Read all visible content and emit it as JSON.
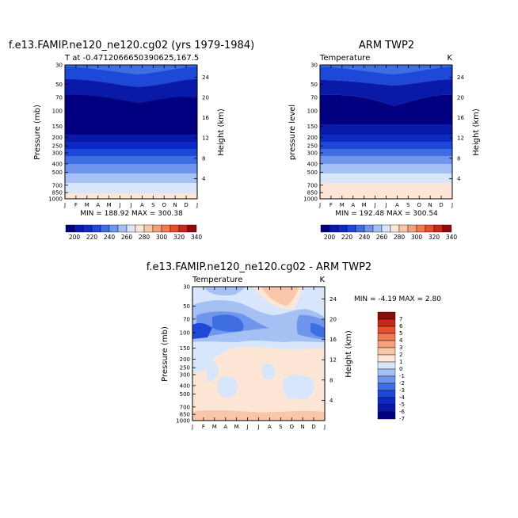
{
  "month_labels": [
    "J",
    "F",
    "M",
    "A",
    "M",
    "J",
    "J",
    "A",
    "S",
    "O",
    "N",
    "D",
    "J"
  ],
  "chart_data": [
    {
      "type": "heatmap",
      "title": "f.e13.FAMIP.ne120_ne120.cg02 (yrs 1979-1984)",
      "subtitle_left": "T at -0.4712066650390625,167.5",
      "subtitle_right": "",
      "ylabel": "Pressure (mb)",
      "ylabel_right": "Height (km)",
      "pressure_ticks": [
        30,
        50,
        70,
        100,
        150,
        200,
        250,
        300,
        400,
        500,
        700,
        850,
        1000
      ],
      "height_ticks": [
        4,
        8,
        12,
        16,
        20,
        24
      ],
      "stats_text": "MIN = 188.92 MAX = 300.38",
      "min": 188.92,
      "max": 300.38,
      "levels": [
        200,
        210,
        220,
        230,
        240,
        250,
        260,
        270,
        280,
        290,
        300,
        310,
        320,
        330,
        340
      ],
      "colorbar_labels": [
        200,
        220,
        240,
        260,
        280,
        300,
        320,
        340
      ]
    },
    {
      "type": "heatmap",
      "title": "ARM TWP2",
      "subtitle_left": "Temperature",
      "subtitle_right": "K",
      "ylabel": "pressure level",
      "ylabel_right": "Height (km)",
      "pressure_ticks": [
        30,
        50,
        70,
        100,
        150,
        200,
        250,
        300,
        400,
        500,
        700,
        850,
        1000
      ],
      "height_ticks": [
        4,
        8,
        12,
        16,
        20,
        24
      ],
      "stats_text": "MIN = 192.48 MAX = 300.54",
      "min": 192.48,
      "max": 300.54,
      "levels": [
        200,
        210,
        220,
        230,
        240,
        250,
        260,
        270,
        280,
        290,
        300,
        310,
        320,
        330,
        340
      ],
      "colorbar_labels": [
        200,
        220,
        240,
        260,
        280,
        300,
        320,
        340
      ]
    },
    {
      "type": "heatmap",
      "title": "f.e13.FAMIP.ne120_ne120.cg02 - ARM TWP2",
      "subtitle_left": "Temperature",
      "subtitle_right": "K",
      "ylabel": "Pressure (mb)",
      "ylabel_right": "Height (km)",
      "pressure_ticks": [
        30,
        50,
        70,
        100,
        150,
        200,
        250,
        300,
        400,
        500,
        700,
        850,
        1000
      ],
      "height_ticks": [
        4,
        8,
        12,
        16,
        20,
        24
      ],
      "stats_text": "MIN = -4.19 MAX = 2.80",
      "min": -4.19,
      "max": 2.8,
      "levels": [
        -7,
        -6,
        -5,
        -4,
        -3,
        -2,
        -1,
        0,
        1,
        2,
        3,
        4,
        5,
        6,
        7
      ],
      "colorbar_labels": [
        7,
        6,
        5,
        4,
        3,
        2,
        1,
        0,
        -1,
        -2,
        -3,
        -4,
        -5,
        -6,
        -7
      ]
    }
  ],
  "colors": {
    "palette": [
      "#000080",
      "#0a1aa8",
      "#0d2bc4",
      "#1e48d8",
      "#3f6ee3",
      "#6f96ec",
      "#a5c1f3",
      "#d7e6fb",
      "#fde6d6",
      "#f8c7aa",
      "#f4a07b",
      "#ef7a53",
      "#e3502c",
      "#c5271b",
      "#8e0b0b"
    ]
  }
}
